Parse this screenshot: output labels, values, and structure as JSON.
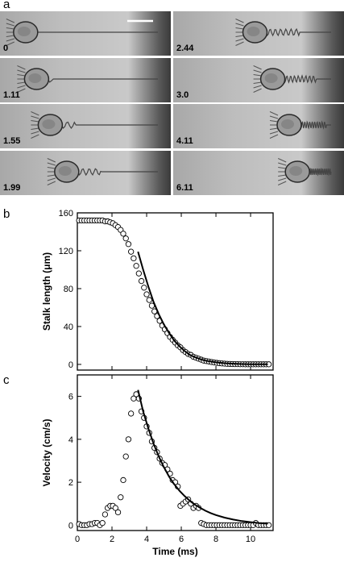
{
  "panel_a": {
    "letter": "a",
    "frames": [
      {
        "time": "0",
        "cell_pos": 0.14,
        "coils": 0
      },
      {
        "time": "2.44",
        "cell_pos": 0.55,
        "coils": 0.5
      },
      {
        "time": "1.11",
        "cell_pos": 0.22,
        "coils": 0.05
      },
      {
        "time": "3.0",
        "cell_pos": 0.68,
        "coils": 0.7
      },
      {
        "time": "1.55",
        "cell_pos": 0.32,
        "coils": 0.15
      },
      {
        "time": "4.11",
        "cell_pos": 0.8,
        "coils": 0.85
      },
      {
        "time": "1.99",
        "cell_pos": 0.44,
        "coils": 0.3
      },
      {
        "time": "6.11",
        "cell_pos": 0.86,
        "coils": 1.0
      }
    ]
  },
  "chart_data": [
    {
      "panel": "b",
      "type": "scatter",
      "ylabel": "Stalk length (μm)",
      "xlim": [
        0,
        11.3
      ],
      "ylim": [
        -6,
        160
      ],
      "yticks": [
        0,
        40,
        80,
        120,
        160
      ],
      "xticks": [
        0,
        2,
        4,
        6,
        8,
        10
      ],
      "scatter": {
        "x": [
          0.1,
          0.25,
          0.4,
          0.55,
          0.7,
          0.85,
          1.0,
          1.15,
          1.3,
          1.45,
          1.6,
          1.75,
          1.9,
          2.05,
          2.2,
          2.35,
          2.5,
          2.65,
          2.8,
          2.95,
          3.1,
          3.25,
          3.4,
          3.55,
          3.7,
          3.85,
          4.0,
          4.15,
          4.3,
          4.45,
          4.6,
          4.75,
          4.9,
          5.05,
          5.2,
          5.35,
          5.5,
          5.65,
          5.8,
          5.95,
          6.1,
          6.25,
          6.4,
          6.55,
          6.7,
          6.85,
          7.0,
          7.15,
          7.3,
          7.45,
          7.6,
          7.75,
          7.9,
          8.05,
          8.2,
          8.35,
          8.5,
          8.65,
          8.8,
          8.95,
          9.1,
          9.25,
          9.4,
          9.55,
          9.7,
          9.85,
          10.0,
          10.15,
          10.3,
          10.45,
          10.6,
          10.75,
          10.9,
          11.05
        ],
        "y": [
          152,
          152,
          152,
          152,
          152,
          152,
          152,
          152,
          152,
          152,
          151,
          151,
          150,
          149,
          147,
          145,
          142,
          138,
          133,
          127,
          119,
          112,
          104,
          96,
          88,
          81,
          74,
          68,
          62,
          56,
          51,
          46,
          41,
          37,
          33,
          29,
          26,
          23,
          20,
          18,
          15,
          13,
          11,
          10,
          8,
          7,
          6,
          5,
          4,
          3.5,
          3,
          2.5,
          2,
          1.6,
          1.3,
          1,
          0.8,
          0.6,
          0.5,
          0.4,
          0.3,
          0.3,
          0.2,
          0.2,
          0.1,
          0.1,
          0.1,
          0.1,
          0.1,
          0.1,
          0.1,
          0.1,
          0.1,
          0.1
        ]
      },
      "fit": {
        "x": [
          3.5,
          3.8,
          4.1,
          4.4,
          4.7,
          5.0,
          5.3,
          5.6,
          5.9,
          6.2,
          6.5,
          6.8,
          7.1,
          7.4,
          7.7,
          8.0,
          8.5,
          9.0,
          9.5,
          10.0,
          10.5,
          11.0
        ],
        "y": [
          119,
          100,
          82,
          66,
          53,
          42,
          33,
          25,
          19,
          14,
          10,
          7.5,
          5.5,
          4,
          3,
          2.2,
          1.2,
          0.7,
          0.4,
          0.2,
          0.1,
          0.1
        ]
      }
    },
    {
      "panel": "c",
      "type": "scatter",
      "xlabel": "Time (ms)",
      "ylabel": "Velocity (cm/s)",
      "xlim": [
        0,
        11.3
      ],
      "ylim": [
        -0.25,
        7
      ],
      "yticks": [
        0,
        2,
        4,
        6
      ],
      "xticks": [
        0,
        2,
        4,
        6,
        8,
        10
      ],
      "scatter": {
        "x": [
          0.1,
          0.25,
          0.4,
          0.55,
          0.7,
          0.85,
          1.0,
          1.15,
          1.3,
          1.45,
          1.6,
          1.75,
          1.9,
          2.05,
          2.2,
          2.35,
          2.5,
          2.65,
          2.8,
          2.95,
          3.1,
          3.25,
          3.4,
          3.55,
          3.7,
          3.85,
          4.0,
          4.15,
          4.3,
          4.45,
          4.6,
          4.75,
          4.9,
          5.05,
          5.2,
          5.35,
          5.5,
          5.65,
          5.8,
          5.95,
          6.1,
          6.25,
          6.4,
          6.55,
          6.7,
          6.85,
          7.0,
          7.15,
          7.3,
          7.45,
          7.6,
          7.75,
          7.9,
          8.05,
          8.2,
          8.35,
          8.5,
          8.65,
          8.8,
          8.95,
          9.1,
          9.25,
          9.4,
          9.55,
          9.7,
          9.85,
          10.0,
          10.15,
          10.3,
          10.45,
          10.6,
          10.75,
          10.9,
          11.05
        ],
        "y": [
          0.05,
          0,
          0,
          0,
          0.05,
          0.05,
          0.1,
          0.1,
          0,
          0.1,
          0.5,
          0.8,
          0.9,
          0.9,
          0.8,
          0.6,
          1.3,
          2.1,
          3.2,
          4.0,
          5.2,
          5.9,
          6.1,
          5.9,
          5.3,
          5.0,
          4.6,
          4.3,
          3.9,
          3.6,
          3.4,
          3.1,
          2.9,
          2.8,
          2.6,
          2.4,
          2.1,
          2.0,
          1.8,
          0.9,
          1.0,
          1.1,
          1.2,
          1.0,
          0.8,
          0.9,
          0.8,
          0.1,
          0.05,
          0,
          0,
          0,
          0,
          0,
          0,
          0,
          0,
          0,
          0,
          0,
          0,
          0,
          0,
          0,
          0,
          0,
          0,
          0,
          0.1,
          0,
          0,
          0,
          0,
          0
        ]
      },
      "fit": {
        "x": [
          3.5,
          3.8,
          4.1,
          4.4,
          4.7,
          5.0,
          5.3,
          5.6,
          5.9,
          6.2,
          6.5,
          6.8,
          7.1,
          7.4,
          7.7,
          8.0,
          8.5,
          9.0,
          9.5,
          10.0,
          10.5,
          11.0
        ],
        "y": [
          6.3,
          5.3,
          4.5,
          3.8,
          3.2,
          2.7,
          2.25,
          1.9,
          1.6,
          1.35,
          1.13,
          0.95,
          0.8,
          0.67,
          0.56,
          0.47,
          0.35,
          0.26,
          0.19,
          0.14,
          0.1,
          0.07
        ]
      }
    }
  ],
  "labels": {
    "b": "b",
    "c": "c"
  }
}
